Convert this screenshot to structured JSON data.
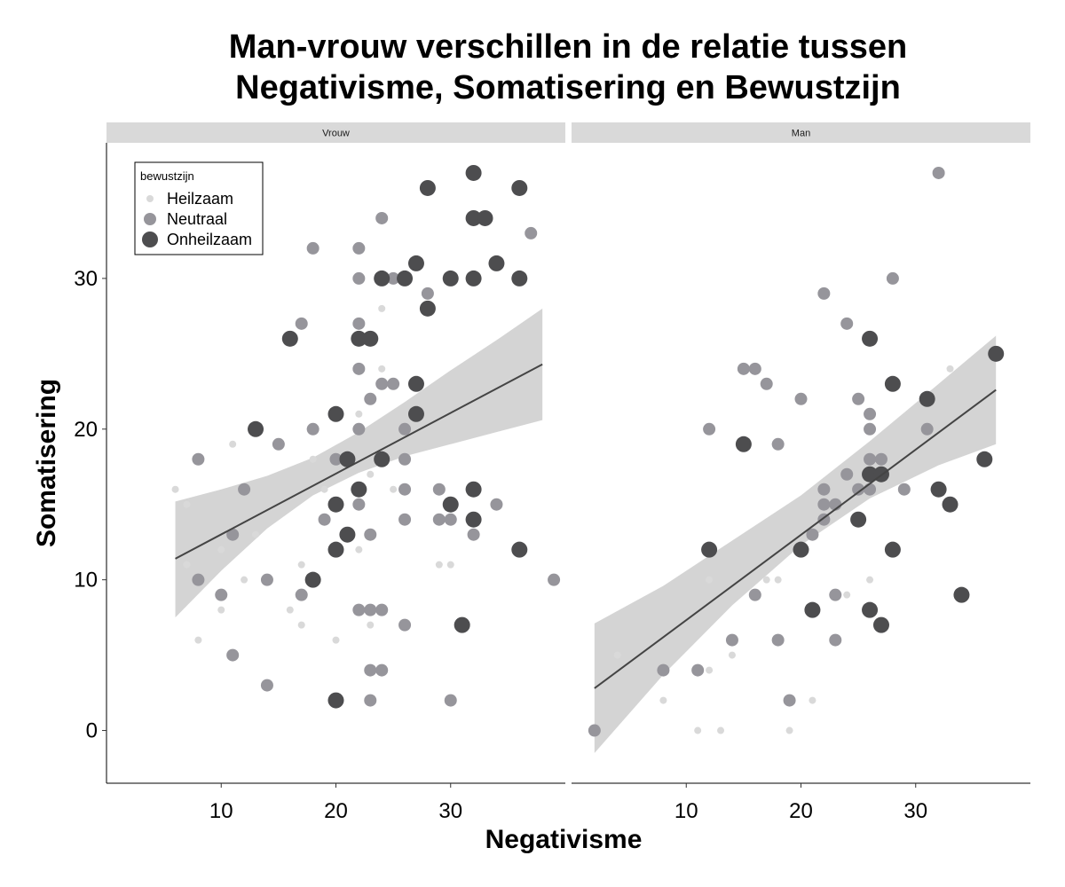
{
  "chart_data": {
    "type": "scatter",
    "title_line1": "Man-vrouw verschillen in de relatie tussen",
    "title_line2": "Negativisme, Somatisering en Bewustzijn",
    "xlabel": "Negativisme",
    "ylabel": "Somatisering",
    "xlim": [
      0,
      40
    ],
    "ylim": [
      -3.5,
      39
    ],
    "x_ticks": [
      10,
      20,
      30
    ],
    "y_ticks": [
      0,
      10,
      20,
      30
    ],
    "grid": false,
    "legend": {
      "title": "bewustzijn",
      "placement": "top-left",
      "entries": [
        "Heilzaam",
        "Neutraal",
        "Onheilzaam"
      ]
    },
    "colors": {
      "Heilzaam": "#d9d9d9",
      "Neutraal": "#96959b",
      "Onheilzaam": "#4d4d4f",
      "ribbon": "#d4d4d4",
      "line": "#444444",
      "strip": "#d9d9d9"
    },
    "facets": [
      {
        "name": "Vrouw",
        "fit": {
          "x0": 6,
          "y0": 11.4,
          "x1": 38,
          "y1": 24.3
        },
        "band": [
          {
            "x": 6,
            "lo": 7.5,
            "hi": 15.2
          },
          {
            "x": 10,
            "lo": 10.6,
            "hi": 16.0
          },
          {
            "x": 14,
            "lo": 13.4,
            "hi": 16.9
          },
          {
            "x": 18,
            "lo": 15.6,
            "hi": 18.1
          },
          {
            "x": 22,
            "lo": 17.1,
            "hi": 19.8
          },
          {
            "x": 26,
            "lo": 18.2,
            "hi": 21.8
          },
          {
            "x": 30,
            "lo": 19.0,
            "hi": 23.9
          },
          {
            "x": 34,
            "lo": 19.8,
            "hi": 25.9
          },
          {
            "x": 38,
            "lo": 20.6,
            "hi": 28.0
          }
        ],
        "points": {
          "Heilzaam": [
            [
              6,
              16
            ],
            [
              7,
              15
            ],
            [
              7,
              11
            ],
            [
              8,
              6
            ],
            [
              10,
              12
            ],
            [
              10,
              8
            ],
            [
              11,
              19
            ],
            [
              12,
              10
            ],
            [
              13,
              13
            ],
            [
              16,
              8
            ],
            [
              17,
              11
            ],
            [
              17,
              7
            ],
            [
              18,
              18
            ],
            [
              19,
              16
            ],
            [
              20,
              18
            ],
            [
              20,
              6
            ],
            [
              21,
              18
            ],
            [
              22,
              21
            ],
            [
              22,
              12
            ],
            [
              23,
              17
            ],
            [
              23,
              7
            ],
            [
              24,
              28
            ],
            [
              24,
              24
            ],
            [
              25,
              16
            ],
            [
              25,
              30
            ],
            [
              27,
              21
            ],
            [
              29,
              11
            ],
            [
              30,
              11
            ],
            [
              30,
              14
            ]
          ],
          "Neutraal": [
            [
              8,
              18
            ],
            [
              8,
              10
            ],
            [
              10,
              9
            ],
            [
              11,
              13
            ],
            [
              11,
              5
            ],
            [
              12,
              16
            ],
            [
              14,
              10
            ],
            [
              14,
              3
            ],
            [
              15,
              19
            ],
            [
              17,
              27
            ],
            [
              17,
              9
            ],
            [
              18,
              32
            ],
            [
              18,
              20
            ],
            [
              19,
              14
            ],
            [
              20,
              18
            ],
            [
              22,
              32
            ],
            [
              22,
              30
            ],
            [
              22,
              27
            ],
            [
              22,
              24
            ],
            [
              22,
              20
            ],
            [
              22,
              15
            ],
            [
              22,
              8
            ],
            [
              23,
              22
            ],
            [
              23,
              13
            ],
            [
              23,
              8
            ],
            [
              23,
              4
            ],
            [
              23,
              2
            ],
            [
              24,
              23
            ],
            [
              24,
              8
            ],
            [
              24,
              4
            ],
            [
              24,
              34
            ],
            [
              25,
              23
            ],
            [
              25,
              30
            ],
            [
              26,
              20
            ],
            [
              26,
              18
            ],
            [
              26,
              16
            ],
            [
              26,
              14
            ],
            [
              26,
              7
            ],
            [
              28,
              29
            ],
            [
              29,
              16
            ],
            [
              29,
              14
            ],
            [
              30,
              14
            ],
            [
              30,
              2
            ],
            [
              32,
              16
            ],
            [
              32,
              13
            ],
            [
              34,
              15
            ],
            [
              37,
              33
            ],
            [
              39,
              10
            ]
          ],
          "Onheilzaam": [
            [
              13,
              20
            ],
            [
              16,
              26
            ],
            [
              18,
              10
            ],
            [
              20,
              21
            ],
            [
              20,
              15
            ],
            [
              20,
              12
            ],
            [
              20,
              2
            ],
            [
              21,
              18
            ],
            [
              21,
              13
            ],
            [
              22,
              26
            ],
            [
              22,
              16
            ],
            [
              23,
              26
            ],
            [
              24,
              30
            ],
            [
              24,
              18
            ],
            [
              26,
              30
            ],
            [
              27,
              31
            ],
            [
              27,
              23
            ],
            [
              27,
              21
            ],
            [
              28,
              36
            ],
            [
              28,
              28
            ],
            [
              30,
              30
            ],
            [
              30,
              15
            ],
            [
              31,
              7
            ],
            [
              32,
              37
            ],
            [
              32,
              34
            ],
            [
              32,
              30
            ],
            [
              32,
              16
            ],
            [
              32,
              14
            ],
            [
              33,
              34
            ],
            [
              34,
              31
            ],
            [
              36,
              36
            ],
            [
              36,
              30
            ],
            [
              36,
              12
            ]
          ]
        }
      },
      {
        "name": "Man",
        "fit": {
          "x0": 2,
          "y0": 2.8,
          "x1": 37,
          "y1": 22.6
        },
        "band": [
          {
            "x": 2,
            "lo": -1.5,
            "hi": 7.1
          },
          {
            "x": 8,
            "lo": 3.7,
            "hi": 9.6
          },
          {
            "x": 14,
            "lo": 8.3,
            "hi": 12.6
          },
          {
            "x": 20,
            "lo": 12.3,
            "hi": 15.6
          },
          {
            "x": 26,
            "lo": 15.4,
            "hi": 19.2
          },
          {
            "x": 32,
            "lo": 17.6,
            "hi": 23.0
          },
          {
            "x": 37,
            "lo": 19.0,
            "hi": 26.2
          }
        ],
        "points": {
          "Heilzaam": [
            [
              4,
              5
            ],
            [
              8,
              2
            ],
            [
              11,
              0
            ],
            [
              12,
              10
            ],
            [
              12,
              4
            ],
            [
              13,
              0
            ],
            [
              14,
              5
            ],
            [
              17,
              10
            ],
            [
              18,
              10
            ],
            [
              19,
              0
            ],
            [
              21,
              2
            ],
            [
              24,
              9
            ],
            [
              25,
              14
            ],
            [
              25,
              22
            ],
            [
              26,
              10
            ],
            [
              33,
              24
            ]
          ],
          "Neutraal": [
            [
              2,
              0
            ],
            [
              8,
              4
            ],
            [
              11,
              4
            ],
            [
              12,
              20
            ],
            [
              14,
              6
            ],
            [
              15,
              24
            ],
            [
              16,
              24
            ],
            [
              16,
              9
            ],
            [
              17,
              23
            ],
            [
              18,
              19
            ],
            [
              18,
              6
            ],
            [
              19,
              2
            ],
            [
              20,
              22
            ],
            [
              21,
              13
            ],
            [
              22,
              29
            ],
            [
              22,
              16
            ],
            [
              22,
              15
            ],
            [
              22,
              14
            ],
            [
              23,
              15
            ],
            [
              23,
              9
            ],
            [
              23,
              6
            ],
            [
              24,
              27
            ],
            [
              24,
              17
            ],
            [
              25,
              22
            ],
            [
              25,
              16
            ],
            [
              25,
              14
            ],
            [
              26,
              21
            ],
            [
              26,
              20
            ],
            [
              26,
              18
            ],
            [
              26,
              16
            ],
            [
              26,
              8
            ],
            [
              27,
              18
            ],
            [
              28,
              30
            ],
            [
              29,
              16
            ],
            [
              31,
              20
            ],
            [
              32,
              37
            ]
          ],
          "Onheilzaam": [
            [
              12,
              12
            ],
            [
              15,
              19
            ],
            [
              20,
              12
            ],
            [
              21,
              8
            ],
            [
              25,
              14
            ],
            [
              26,
              26
            ],
            [
              26,
              17
            ],
            [
              26,
              8
            ],
            [
              27,
              17
            ],
            [
              27,
              7
            ],
            [
              28,
              23
            ],
            [
              28,
              12
            ],
            [
              31,
              22
            ],
            [
              32,
              16
            ],
            [
              33,
              15
            ],
            [
              34,
              9
            ],
            [
              36,
              18
            ],
            [
              37,
              25
            ]
          ]
        }
      }
    ]
  }
}
